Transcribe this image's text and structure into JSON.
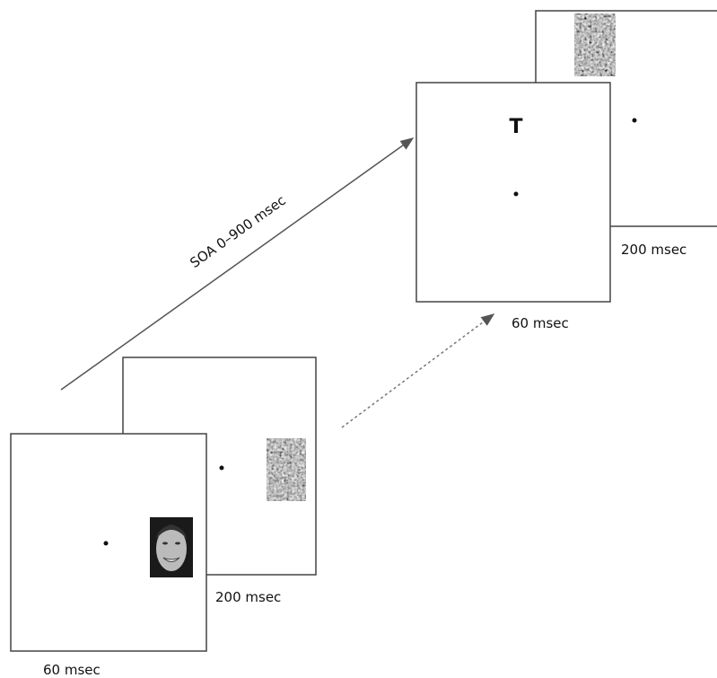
{
  "soa_label": "SOA 0–900 msec",
  "frames": [
    {
      "label": "60 msec"
    },
    {
      "label": "200 msec"
    },
    {
      "label": "60 msec",
      "letter": "T"
    },
    {
      "label": "200 msec"
    }
  ]
}
